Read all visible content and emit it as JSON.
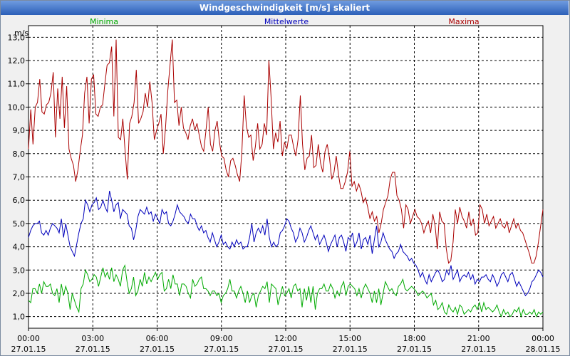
{
  "window": {
    "title": "Windgeschwindigkeit [m/s] skaliert"
  },
  "chart_data": {
    "type": "line",
    "unit": "m/s",
    "ylim": [
      0.5,
      13.5
    ],
    "y_ticks": [
      "1,0",
      "2,0",
      "3,0",
      "4,0",
      "5,0",
      "6,0",
      "7,0",
      "8,0",
      "9,0",
      "10,0",
      "11,0",
      "12,0",
      "13,0"
    ],
    "xlim": [
      0,
      24
    ],
    "x_ticks": [
      {
        "t": 0,
        "time": "00:00",
        "date": "27.01.15"
      },
      {
        "t": 3,
        "time": "03:00",
        "date": "27.01.15"
      },
      {
        "t": 6,
        "time": "06:00",
        "date": "27.01.15"
      },
      {
        "t": 9,
        "time": "09:00",
        "date": "27.01.15"
      },
      {
        "t": 12,
        "time": "12:00",
        "date": "27.01.15"
      },
      {
        "t": 15,
        "time": "15:00",
        "date": "27.01.15"
      },
      {
        "t": 18,
        "time": "18:00",
        "date": "27.01.15"
      },
      {
        "t": 21,
        "time": "21:00",
        "date": "27.01.15"
      },
      {
        "t": 24,
        "time": "00:00",
        "date": "28.01.15"
      }
    ],
    "grid": true,
    "series": [
      {
        "name": "Minima",
        "color": "#00aa00",
        "values": [
          1.7,
          1.6,
          2.2,
          2.2,
          2.0,
          2.4,
          2.0,
          2.5,
          2.3,
          2.3,
          2.4,
          2.0,
          1.9,
          2.2,
          1.6,
          2.4,
          1.9,
          2.3,
          2.0,
          1.3,
          2.0,
          1.7,
          1.4,
          1.2,
          2.2,
          2.4,
          3.0,
          2.8,
          2.5,
          2.6,
          2.8,
          2.7,
          2.3,
          2.7,
          3.1,
          2.7,
          2.9,
          2.6,
          3.1,
          2.5,
          2.8,
          2.6,
          2.3,
          3.0,
          3.2,
          2.5,
          2.0,
          2.2,
          2.7,
          1.9,
          2.1,
          2.6,
          2.3,
          2.9,
          2.4,
          2.7,
          2.5,
          2.7,
          2.9,
          2.6,
          2.8,
          2.9,
          2.1,
          2.2,
          2.6,
          2.2,
          2.8,
          2.4,
          2.4,
          1.9,
          2.4,
          2.4,
          2.3,
          2.0,
          1.8,
          2.6,
          2.3,
          2.4,
          2.6,
          2.7,
          2.2,
          2.2,
          2.1,
          1.9,
          2.1,
          2.1,
          1.9,
          2.0,
          1.6,
          1.9,
          2.0,
          2.2,
          2.6,
          2.1,
          2.1,
          1.8,
          2.1,
          2.3,
          2.0,
          1.6,
          2.1,
          1.6,
          1.9,
          2.0,
          1.4,
          1.9,
          2.1,
          2.3,
          2.2,
          2.5,
          1.6,
          2.4,
          2.3,
          2.2,
          1.5,
          1.9,
          2.3,
          1.9,
          2.0,
          2.2,
          1.8,
          2.3,
          2.4,
          2.1,
          2.2,
          1.4,
          2.2,
          1.7,
          2.3,
          1.6,
          2.3,
          1.3,
          2.0,
          2.2,
          2.2,
          2.4,
          2.1,
          2.1,
          2.4,
          2.2,
          1.8,
          2.1,
          1.9,
          2.3,
          2.5,
          1.9,
          2.3,
          2.4,
          2.3,
          2.2,
          1.9,
          2.2,
          1.8,
          2.2,
          2.4,
          2.2,
          2.0,
          1.6,
          2.1,
          1.6,
          2.2,
          1.5,
          2.0,
          2.5,
          2.3,
          2.1,
          2.2,
          2.0,
          1.9,
          2.3,
          2.4,
          2.6,
          2.2,
          2.1,
          2.2,
          2.3,
          2.2,
          2.1,
          1.9,
          2.0,
          2.1,
          2.0,
          1.8,
          1.9,
          2.0,
          1.5,
          1.7,
          1.3,
          1.4,
          1.6,
          1.2,
          1.1,
          1.5,
          1.3,
          1.2,
          1.4,
          1.1,
          1.5,
          1.4,
          1.1,
          1.2,
          1.3,
          1.2,
          1.4,
          1.5,
          1.3,
          1.6,
          1.2,
          1.6,
          1.3,
          1.4,
          1.3,
          1.2,
          1.3,
          1.5,
          1.2,
          1.0,
          1.3,
          1.1,
          1.2,
          1.0,
          1.1,
          1.3,
          1.2,
          1.4,
          1.0,
          1.3,
          1.1,
          1.1,
          1.2,
          1.1,
          1.3,
          1.0,
          1.2,
          1.1,
          1.2
        ]
      },
      {
        "name": "Mittelwerte",
        "color": "#0000bb",
        "values": [
          4.4,
          4.7,
          4.9,
          5.0,
          5.0,
          5.1,
          4.6,
          4.5,
          4.7,
          4.5,
          4.8,
          5.0,
          4.9,
          4.8,
          4.6,
          5.2,
          4.4,
          5.0,
          4.5,
          4.0,
          3.8,
          3.6,
          4.1,
          4.6,
          5.0,
          5.2,
          6.0,
          5.8,
          5.5,
          5.8,
          5.9,
          6.1,
          5.6,
          5.7,
          6.0,
          5.7,
          5.5,
          6.4,
          6.0,
          5.5,
          5.8,
          5.9,
          5.2,
          5.6,
          5.5,
          5.4,
          4.9,
          4.8,
          4.3,
          4.7,
          5.3,
          5.6,
          5.5,
          5.4,
          5.7,
          5.4,
          5.5,
          5.1,
          5.4,
          5.2,
          5.0,
          5.6,
          5.4,
          5.5,
          5.0,
          4.9,
          5.1,
          5.4,
          5.8,
          5.5,
          5.4,
          5.3,
          5.1,
          5.0,
          5.4,
          5.2,
          5.2,
          4.9,
          4.7,
          4.9,
          4.6,
          4.7,
          4.4,
          4.2,
          4.6,
          4.3,
          4.0,
          4.2,
          4.5,
          4.1,
          4.2,
          4.0,
          3.9,
          4.2,
          4.0,
          4.3,
          4.1,
          4.2,
          3.9,
          4.0,
          4.0,
          4.4,
          5.0,
          4.2,
          4.6,
          4.8,
          4.6,
          4.9,
          4.5,
          5.2,
          4.4,
          4.0,
          4.2,
          4.0,
          4.1,
          4.6,
          4.7,
          4.9,
          5.2,
          5.1,
          4.8,
          4.6,
          4.2,
          4.4,
          4.8,
          4.6,
          4.2,
          4.4,
          4.7,
          4.9,
          4.6,
          4.3,
          4.5,
          4.1,
          4.3,
          4.5,
          4.2,
          3.8,
          4.1,
          4.3,
          4.5,
          4.0,
          4.4,
          4.5,
          4.2,
          3.8,
          4.4,
          4.3,
          4.6,
          4.0,
          4.2,
          4.6,
          3.9,
          4.3,
          4.4,
          4.1,
          4.5,
          3.7,
          4.3,
          4.9,
          4.0,
          4.2,
          4.6,
          4.3,
          4.1,
          3.9,
          3.8,
          3.5,
          3.7,
          3.8,
          4.1,
          3.8,
          3.7,
          3.6,
          3.4,
          3.5,
          3.3,
          3.2,
          3.0,
          2.7,
          2.9,
          2.6,
          2.4,
          2.8,
          2.5,
          2.7,
          2.9,
          3.0,
          2.8,
          2.5,
          2.6,
          3.0,
          2.8,
          3.2,
          2.6,
          2.8,
          3.0,
          2.5,
          2.7,
          2.8,
          2.7,
          2.9,
          2.6,
          2.8,
          2.4,
          2.6,
          2.5,
          2.7,
          2.7,
          2.8,
          2.6,
          2.5,
          2.8,
          2.6,
          2.3,
          2.5,
          2.8,
          2.9,
          2.7,
          2.5,
          2.8,
          2.9,
          2.6,
          2.3,
          2.5,
          2.3,
          2.1,
          1.9,
          2.0,
          2.2,
          2.5,
          2.6,
          2.8,
          3.0,
          2.9,
          2.7
        ]
      },
      {
        "name": "Maxima",
        "color": "#aa0000",
        "values": [
          8.2,
          9.9,
          8.4,
          10.0,
          10.2,
          11.2,
          9.8,
          9.7,
          10.1,
          10.2,
          10.6,
          11.5,
          8.7,
          10.8,
          9.5,
          11.3,
          9.1,
          10.9,
          8.2,
          7.8,
          7.5,
          6.8,
          7.3,
          8.1,
          8.8,
          10.6,
          11.3,
          9.3,
          11.2,
          11.4,
          9.7,
          9.6,
          10.0,
          10.1,
          11.0,
          11.8,
          11.9,
          12.6,
          9.6,
          12.9,
          8.7,
          8.6,
          9.5,
          8.1,
          6.9,
          9.3,
          9.6,
          10.2,
          11.6,
          9.3,
          9.5,
          9.8,
          10.6,
          10.0,
          11.1,
          10.2,
          8.6,
          9.0,
          9.3,
          9.7,
          8.0,
          9.1,
          10.7,
          11.8,
          12.9,
          10.2,
          10.3,
          9.2,
          10.0,
          9.1,
          8.9,
          8.6,
          9.2,
          9.5,
          9.0,
          9.3,
          8.8,
          8.3,
          8.1,
          9.0,
          10.0,
          8.4,
          8.1,
          9.0,
          9.4,
          8.5,
          7.9,
          7.8,
          7.3,
          7.0,
          7.7,
          7.8,
          7.5,
          7.1,
          6.8,
          8.1,
          10.5,
          9.2,
          8.7,
          8.8,
          7.7,
          8.3,
          9.3,
          8.2,
          8.4,
          9.3,
          8.8,
          12.0,
          10.4,
          8.2,
          8.9,
          8.5,
          9.4,
          7.9,
          8.5,
          8.2,
          8.8,
          8.8,
          8.3,
          7.9,
          8.6,
          10.5,
          8.4,
          7.3,
          7.8,
          7.9,
          8.8,
          7.4,
          7.5,
          8.4,
          7.6,
          7.2,
          8.1,
          8.4,
          7.8,
          6.9,
          7.2,
          7.9,
          7.1,
          6.5,
          6.5,
          6.8,
          7.2,
          8.1,
          6.6,
          6.8,
          6.4,
          6.7,
          6.4,
          5.9,
          6.1,
          5.7,
          5.2,
          5.5,
          5.1,
          5.3,
          4.6,
          5.0,
          5.6,
          5.9,
          6.2,
          6.9,
          7.2,
          7.2,
          6.2,
          6.0,
          5.6,
          4.8,
          5.8,
          5.6,
          5.0,
          5.3,
          5.6,
          5.3,
          5.2,
          5.0,
          4.6,
          4.9,
          5.1,
          4.6,
          5.4,
          4.9,
          3.9,
          5.5,
          5.1,
          5.0,
          3.9,
          3.3,
          3.4,
          4.2,
          5.6,
          5.0,
          5.7,
          5.3,
          5.1,
          4.8,
          5.5,
          4.9,
          5.2,
          4.5,
          4.6,
          5.8,
          5.6,
          5.0,
          5.4,
          4.9,
          5.1,
          5.3,
          4.8,
          5.0,
          5.2,
          4.9,
          4.8,
          5.1,
          4.6,
          4.9,
          5.2,
          4.8,
          5.0,
          4.7,
          4.6,
          4.3,
          4.0,
          3.7,
          3.3,
          3.3,
          3.6,
          4.2,
          4.9,
          5.6
        ]
      }
    ]
  }
}
